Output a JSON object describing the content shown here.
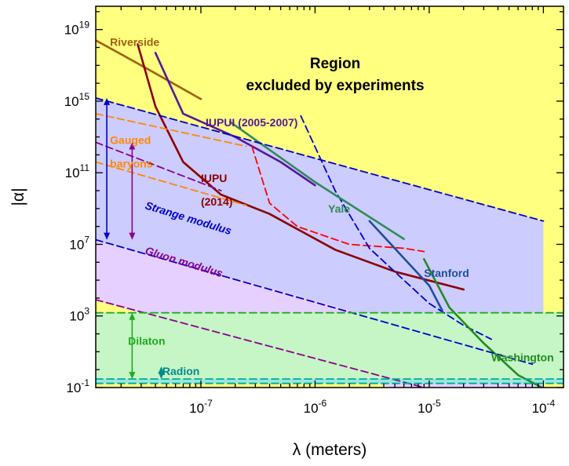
{
  "chart_data": {
    "type": "line",
    "title": "",
    "xlabel": "λ (meters)",
    "ylabel": "|α|",
    "x_scale": "log",
    "y_scale": "log",
    "xlim": [
      1.2e-08,
      0.00015
    ],
    "ylim": [
      0.1,
      2e+20
    ],
    "x_ticks": [
      {
        "value": 1e-07,
        "label": "10-7",
        "base": "10",
        "exp": "-7"
      },
      {
        "value": 1e-06,
        "label": "10-6",
        "base": "10",
        "exp": "-6"
      },
      {
        "value": 1e-05,
        "label": "10-5",
        "base": "10",
        "exp": "-5"
      },
      {
        "value": 0.0001,
        "label": "10-4",
        "base": "10",
        "exp": "-4"
      }
    ],
    "y_ticks": [
      {
        "value": 0.1,
        "label": "10-1",
        "base": "10",
        "exp": "-1"
      },
      {
        "value": 1000.0,
        "label": "103",
        "base": "10",
        "exp": "3"
      },
      {
        "value": 10000000.0,
        "label": "107",
        "base": "10",
        "exp": "7"
      },
      {
        "value": 100000000000.0,
        "label": "1011",
        "base": "10",
        "exp": "11"
      },
      {
        "value": 1000000000000000.0,
        "label": "1015",
        "base": "10",
        "exp": "15"
      },
      {
        "value": 1e+19,
        "label": "1019",
        "base": "10",
        "exp": "19"
      }
    ],
    "grid": false,
    "excluded_region_color": "#ffff80",
    "bands": [
      {
        "name": "Gauged baryons",
        "color": "#fde1c6",
        "upper": [
          [
            1.2e-08,
            200000000000000.0
          ],
          [
            2.5e-07,
            3000000000000.0
          ]
        ],
        "lower": [
          [
            1.2e-08,
            400000000000.0
          ],
          [
            2.5e-07,
            1500000000.0
          ]
        ]
      },
      {
        "name": "Strange modulus",
        "color": "#ccccff",
        "upper": [
          [
            1.2e-08,
            1500000000000000.0
          ],
          [
            0.0001,
            200000000.0
          ]
        ],
        "lower": [
          [
            1.2e-08,
            18000000.0
          ],
          [
            0.0001,
            2.0
          ]
        ]
      },
      {
        "name": "Gluon modulus",
        "color": "#e6d0ff",
        "upper": [
          [
            1.2e-08,
            18000000.0
          ],
          [
            0.0001,
            2.0
          ]
        ],
        "lower": [
          [
            1.2e-08,
            8000.0
          ],
          [
            0.0001,
            0.0003
          ]
        ]
      },
      {
        "name": "Dilaton",
        "color": "#c6f5c6",
        "upper": [
          [
            1.2e-08,
            1500.0
          ],
          [
            0.00015,
            1500.0
          ]
        ],
        "lower": [
          [
            1.2e-08,
            0.3
          ],
          [
            0.00015,
            0.3
          ]
        ]
      },
      {
        "name": "Radion",
        "color": "#99e8dd",
        "upper": [
          [
            1.2e-08,
            0.3
          ],
          [
            0.00015,
            0.3
          ]
        ],
        "lower": [
          [
            1.2e-08,
            0.17
          ],
          [
            0.00015,
            0.17
          ]
        ]
      }
    ],
    "series": [
      {
        "name": "Riverside",
        "color": "#a06010",
        "style": "solid",
        "points": [
          [
            1.2e-08,
            2.5e+18
          ],
          [
            3e-08,
            1e+17
          ],
          [
            1e-07,
            1300000000000000.0
          ]
        ]
      },
      {
        "name": "IUPU (2014)",
        "color": "#8b0000",
        "style": "solid",
        "points": [
          [
            2.8e-08,
            1.5e+18
          ],
          [
            4e-08,
            500000000000000.0
          ],
          [
            7e-08,
            400000000000.0
          ],
          [
            1.5e-07,
            6000000000.0
          ],
          [
            4e-07,
            500000000.0
          ],
          [
            1.5e-06,
            5000000.0
          ],
          [
            5e-06,
            300000.0
          ],
          [
            2e-05,
            30000.0
          ]
        ]
      },
      {
        "name": "IUPUI (2005-2007)",
        "color": "#55189a",
        "style": "solid",
        "points": [
          [
            4e-08,
            5e+17
          ],
          [
            7e-08,
            200000000000000.0
          ],
          [
            2e-07,
            10000000000000.0
          ],
          [
            5e-07,
            400000000000.0
          ],
          [
            1e-06,
            20000000000.0
          ]
        ]
      },
      {
        "name": "red-dashed",
        "color": "#ff0000",
        "style": "dashed",
        "points": [
          [
            2.8e-07,
            3000000000000.0
          ],
          [
            4e-07,
            2000000000.0
          ],
          [
            7e-07,
            100000000.0
          ],
          [
            2e-06,
            10000000.0
          ],
          [
            6e-06,
            6000000.0
          ],
          [
            9e-06,
            4000000.0
          ]
        ]
      },
      {
        "name": "blue-dashed",
        "color": "#0000cc",
        "style": "dashed",
        "points": [
          [
            7.5e-07,
            150000000000000.0
          ],
          [
            1.5e-06,
            10000000000.0
          ],
          [
            3e-06,
            6000000.0
          ],
          [
            6e-06,
            100000.0
          ],
          [
            1e-05,
            5000.0
          ],
          [
            2e-05,
            300.0
          ],
          [
            3.5e-05,
            50.0
          ]
        ]
      },
      {
        "name": "Yale",
        "color": "#2e8b57",
        "style": "solid",
        "points": [
          [
            1.8e-07,
            70000000000000.0
          ],
          [
            1e-06,
            30000000000.0
          ],
          [
            6e-06,
            20000000.0
          ]
        ]
      },
      {
        "name": "Stanford",
        "color": "#1f4e99",
        "style": "solid",
        "points": [
          [
            3e-06,
            200000000.0
          ],
          [
            1e-05,
            50000.0
          ],
          [
            1.3e-05,
            2000.0
          ]
        ]
      },
      {
        "name": "Washington",
        "color": "#228b22",
        "style": "solid",
        "points": [
          [
            9e-06,
            1500000.0
          ],
          [
            1.5e-05,
            3000.0
          ],
          [
            3e-05,
            30.0
          ],
          [
            6e-05,
            0.5
          ],
          [
            0.00012,
            0.05
          ]
        ]
      },
      {
        "name": "orange-dashed-upper",
        "color": "#ff8800",
        "style": "dashed",
        "points": [
          [
            1.2e-08,
            200000000000000.0
          ],
          [
            2.5e-07,
            3000000000000.0
          ]
        ]
      },
      {
        "name": "orange-dashed-lower",
        "color": "#ff8800",
        "style": "dashed",
        "points": [
          [
            1.2e-08,
            400000000000.0
          ],
          [
            2.5e-07,
            1500000000.0
          ]
        ]
      },
      {
        "name": "blue-dashed-band-upper",
        "color": "#0000cc",
        "style": "dashed",
        "points": [
          [
            1.2e-08,
            1500000000000000.0
          ],
          [
            0.0001,
            200000000.0
          ]
        ]
      },
      {
        "name": "blue-dashed-band-lower",
        "color": "#0000cc",
        "style": "dashed",
        "points": [
          [
            1.2e-08,
            18000000.0
          ],
          [
            8e-05,
            2.0
          ]
        ]
      },
      {
        "name": "purple-dashed-upper",
        "color": "#8b008b",
        "style": "dashed",
        "points": [
          [
            1.2e-08,
            5000000000000.0
          ],
          [
            1.5e-07,
            10000000000.0
          ]
        ]
      },
      {
        "name": "purple-dashed-lower",
        "color": "#8b008b",
        "style": "dashed",
        "points": [
          [
            1.2e-08,
            8000.0
          ],
          [
            9e-06,
            0.1
          ]
        ]
      },
      {
        "name": "dilaton-dashed",
        "color": "#22aa22",
        "style": "dashed",
        "points": [
          [
            1.2e-08,
            1500.0
          ],
          [
            0.00015,
            1500.0
          ]
        ]
      },
      {
        "name": "radion-dashed-1",
        "color": "#00aa99",
        "style": "dashed",
        "points": [
          [
            1.2e-08,
            0.3
          ],
          [
            0.00015,
            0.3
          ]
        ]
      },
      {
        "name": "radion-dashed-2",
        "color": "#00aa99",
        "style": "dashed",
        "points": [
          [
            1.2e-08,
            0.17
          ],
          [
            0.00015,
            0.17
          ]
        ]
      }
    ],
    "annotations": [
      {
        "text": "Riverside",
        "color": "#a06010",
        "x": 1.6e-08,
        "y": 1.2e+18,
        "size": 14,
        "rot": 0
      },
      {
        "text": "Region",
        "color": "#000000",
        "x": 1.5e-06,
        "y": 7e+16,
        "size": 19,
        "rot": 0,
        "anchor": "middle"
      },
      {
        "text": "excluded by experiments",
        "color": "#000000",
        "x": 1.5e-06,
        "y": 4000000000000000.0,
        "size": 19,
        "rot": 0,
        "anchor": "middle"
      },
      {
        "text": "IUPUI (2005-2007)",
        "color": "#55189a",
        "x": 1.1e-07,
        "y": 40000000000000.0,
        "size": 14,
        "rot": 0
      },
      {
        "text": "Gauged",
        "color": "#ff8800",
        "x": 1.6e-08,
        "y": 4000000000000.0,
        "size": 14,
        "rot": 0
      },
      {
        "text": "baryons",
        "color": "#ff8800",
        "x": 1.6e-08,
        "y": 200000000000.0,
        "size": 14,
        "rot": 0
      },
      {
        "text": "IUPU",
        "color": "#8b0000",
        "x": 1e-07,
        "y": 30000000000.0,
        "size": 14,
        "rot": 0
      },
      {
        "text": "(2014)",
        "color": "#8b0000",
        "x": 1e-07,
        "y": 1500000000.0,
        "size": 14,
        "rot": 0
      },
      {
        "text": "Yale",
        "color": "#2e8b57",
        "x": 1.3e-06,
        "y": 600000000.0,
        "size": 14,
        "rot": 0
      },
      {
        "text": "Strange modulus",
        "color": "#0000cc",
        "x": 3.2e-08,
        "y": 1000000000.0,
        "size": 14,
        "rot": 17,
        "italic": true
      },
      {
        "text": "Gluon modulus",
        "color": "#8b008b",
        "x": 3.2e-08,
        "y": 3000000.0,
        "size": 14,
        "rot": 17,
        "italic": true
      },
      {
        "text": "Stanford",
        "color": "#1f4e99",
        "x": 9e-06,
        "y": 150000.0,
        "size": 14,
        "rot": 0
      },
      {
        "text": "Dilaton",
        "color": "#22aa22",
        "x": 2.3e-08,
        "y": 25.0,
        "size": 14,
        "rot": 0
      },
      {
        "text": "Radion",
        "color": "#008b8b",
        "x": 4.6e-08,
        "y": 0.5,
        "size": 14,
        "rot": 0
      },
      {
        "text": "Washington",
        "color": "#228b22",
        "x": 3.5e-05,
        "y": 3.0,
        "size": 14,
        "rot": 0
      }
    ],
    "arrows": [
      {
        "color": "#0000cc",
        "x": 1.5e-08,
        "y1": 1500000000000000.0,
        "y2": 18000000.0
      },
      {
        "color": "#8b008b",
        "x": 2.5e-08,
        "y1": 5000000000000.0,
        "y2": 18000000.0
      },
      {
        "color": "#22aa22",
        "x": 2.5e-08,
        "y1": 1500.0,
        "y2": 0.3
      },
      {
        "color": "#008b8b",
        "x": 4.5e-08,
        "y1": 1.5,
        "y2": 0.3
      }
    ]
  }
}
